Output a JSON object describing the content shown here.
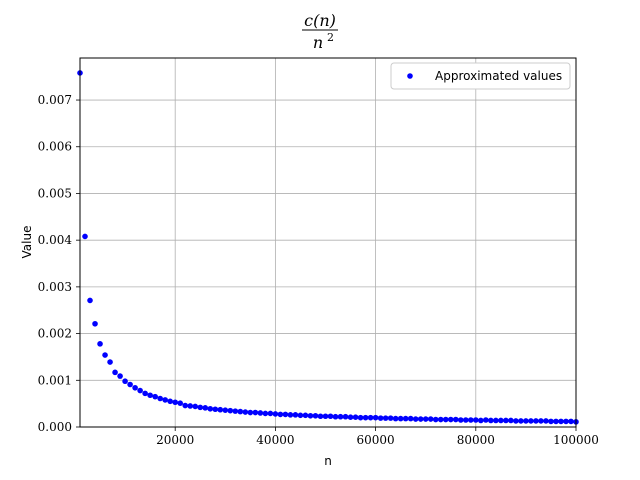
{
  "chart_data": {
    "type": "scatter",
    "title": "c(n) / n^2",
    "title_numerator": "c(n)",
    "title_denominator": "n",
    "title_exponent": "2",
    "xlabel": "n",
    "ylabel": "Value",
    "xlim": [
      1000,
      100000
    ],
    "ylim": [
      0,
      0.0079
    ],
    "xticks": [
      20000,
      40000,
      60000,
      80000,
      100000
    ],
    "xtick_labels": [
      "20000",
      "40000",
      "60000",
      "80000",
      "100000"
    ],
    "yticks": [
      0,
      0.001,
      0.002,
      0.003,
      0.004,
      0.005,
      0.006,
      0.007
    ],
    "ytick_labels": [
      "0.000",
      "0.001",
      "0.002",
      "0.003",
      "0.004",
      "0.005",
      "0.006",
      "0.007"
    ],
    "grid": true,
    "legend_position": "top-right",
    "series": [
      {
        "name": "Approximated values",
        "color": "#0000ff",
        "x": [
          1000,
          2000,
          3000,
          4000,
          5000,
          6000,
          7000,
          8000,
          9000,
          10000,
          11000,
          12000,
          13000,
          14000,
          15000,
          16000,
          17000,
          18000,
          19000,
          20000,
          21000,
          22000,
          23000,
          24000,
          25000,
          26000,
          27000,
          28000,
          29000,
          30000,
          31000,
          32000,
          33000,
          34000,
          35000,
          36000,
          37000,
          38000,
          39000,
          40000,
          41000,
          42000,
          43000,
          44000,
          45000,
          46000,
          47000,
          48000,
          49000,
          50000,
          51000,
          52000,
          53000,
          54000,
          55000,
          56000,
          57000,
          58000,
          59000,
          60000,
          61000,
          62000,
          63000,
          64000,
          65000,
          66000,
          67000,
          68000,
          69000,
          70000,
          71000,
          72000,
          73000,
          74000,
          75000,
          76000,
          77000,
          78000,
          79000,
          80000,
          81000,
          82000,
          83000,
          84000,
          85000,
          86000,
          87000,
          88000,
          89000,
          90000,
          91000,
          92000,
          93000,
          94000,
          95000,
          96000,
          97000,
          98000,
          99000,
          100000
        ],
        "y": [
          0.00758,
          0.00408,
          0.00271,
          0.00221,
          0.00178,
          0.00154,
          0.00139,
          0.00117,
          0.00109,
          0.00098,
          0.00091,
          0.00084,
          0.00078,
          0.00072,
          0.00068,
          0.00065,
          0.00061,
          0.00058,
          0.00055,
          0.00053,
          0.00051,
          0.00046,
          0.00045,
          0.00044,
          0.00042,
          0.00041,
          0.00039,
          0.00038,
          0.00037,
          0.00036,
          0.00035,
          0.00034,
          0.00033,
          0.00032,
          0.00031,
          0.00031,
          0.0003,
          0.00029,
          0.00029,
          0.00028,
          0.00027,
          0.00027,
          0.00026,
          0.00026,
          0.00025,
          0.00025,
          0.00024,
          0.00024,
          0.00023,
          0.00023,
          0.00023,
          0.00022,
          0.00022,
          0.00022,
          0.00021,
          0.00021,
          0.0002,
          0.0002,
          0.0002,
          0.0002,
          0.00019,
          0.00019,
          0.00019,
          0.00018,
          0.00018,
          0.00018,
          0.00018,
          0.00017,
          0.00017,
          0.00017,
          0.00017,
          0.00016,
          0.00016,
          0.00016,
          0.00016,
          0.00016,
          0.00015,
          0.00015,
          0.00015,
          0.00015,
          0.00014,
          0.00015,
          0.00014,
          0.00014,
          0.00014,
          0.00014,
          0.00014,
          0.00013,
          0.00013,
          0.00013,
          0.00013,
          0.00013,
          0.00013,
          0.00013,
          0.00012,
          0.00012,
          0.00012,
          0.00012,
          0.00012,
          0.00011
        ]
      }
    ]
  }
}
